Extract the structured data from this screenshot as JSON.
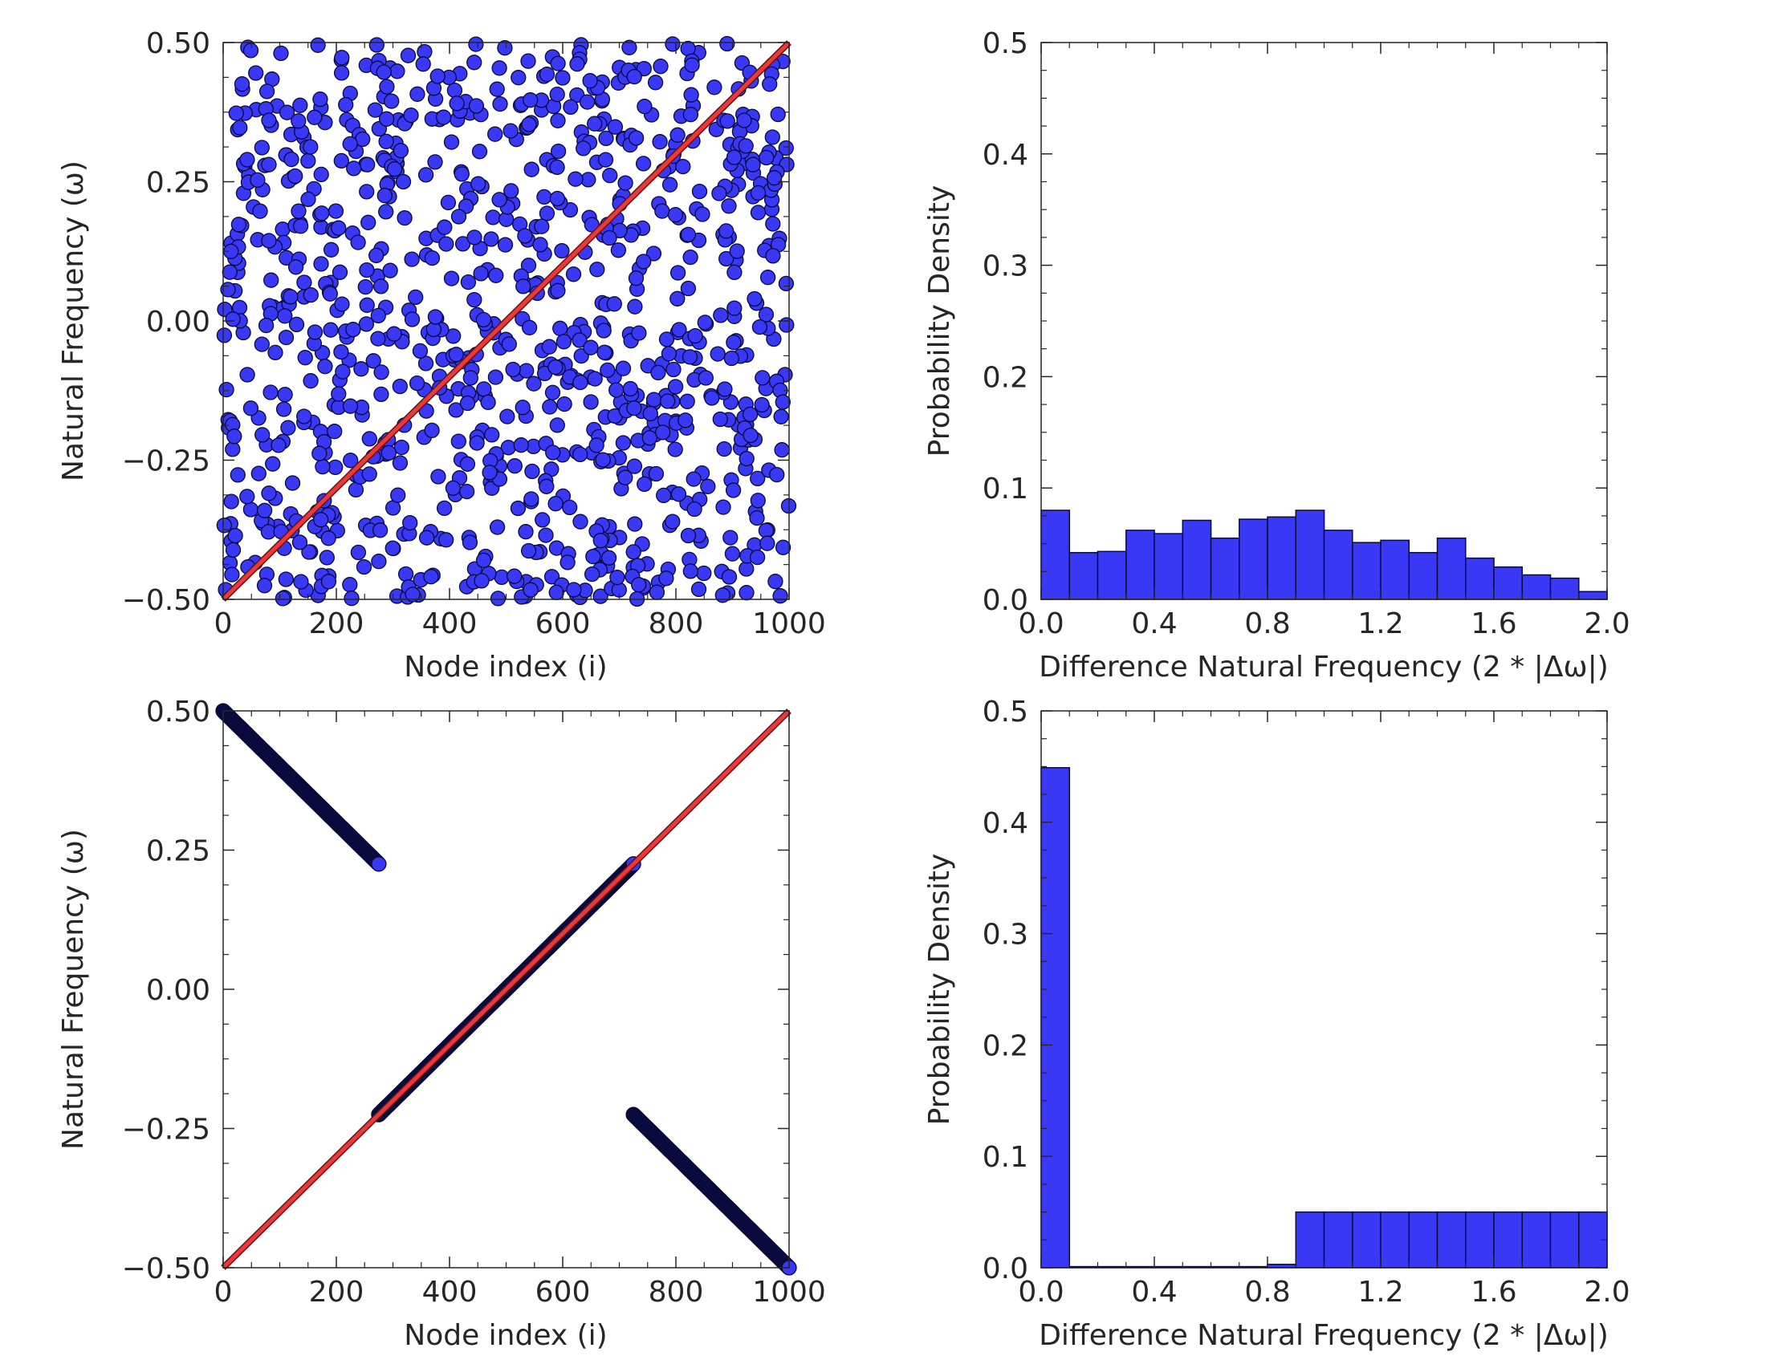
{
  "colors": {
    "marker_fill": "#3838f5",
    "marker_edge": "#0a0a3c",
    "line": "#e83a3a",
    "bar_fill": "#3838f5",
    "bar_edge": "#0a0a3c",
    "text": "#262626",
    "axes": "#262626"
  },
  "chart_data": [
    {
      "type": "scatter",
      "xlabel": "Node index (i)",
      "ylabel": "Natural Frequency (ω)",
      "xlim": [
        0,
        1000
      ],
      "ylim": [
        -0.5,
        0.5
      ],
      "xticks": [
        "0",
        "200",
        "400",
        "600",
        "800",
        "1000"
      ],
      "yticks": [
        "−0.50",
        "−0.25",
        "0.00",
        "0.25",
        "0.50"
      ],
      "series": [
        {
          "kind": "scatter",
          "description_n_points": 1000,
          "x_range": [
            0,
            1000
          ],
          "y_range": [
            -0.5,
            0.5
          ],
          "distribution": "random uniform (shuffled frequencies)"
        },
        {
          "kind": "line",
          "x": [
            0,
            1000
          ],
          "y": [
            -0.5,
            0.5
          ]
        }
      ]
    },
    {
      "type": "bar",
      "xlabel": "Difference Natural Frequency (2 * |Δω|)",
      "ylabel": "Probability Density",
      "xlim": [
        0,
        2
      ],
      "ylim": [
        0,
        0.5
      ],
      "xticks": [
        "0.0",
        "0.4",
        "0.8",
        "1.2",
        "1.6",
        "2.0"
      ],
      "yticks": [
        "0.0",
        "0.1",
        "0.2",
        "0.3",
        "0.4",
        "0.5"
      ],
      "bin_edges": [
        0,
        0.1,
        0.2,
        0.3,
        0.4,
        0.5,
        0.6,
        0.7,
        0.8,
        0.9,
        1.0,
        1.1,
        1.2,
        1.3,
        1.4,
        1.5,
        1.6,
        1.7,
        1.8,
        1.9,
        2.0
      ],
      "values": [
        0.08,
        0.042,
        0.043,
        0.062,
        0.059,
        0.071,
        0.055,
        0.072,
        0.074,
        0.08,
        0.062,
        0.051,
        0.053,
        0.042,
        0.055,
        0.037,
        0.029,
        0.022,
        0.019,
        0.007
      ]
    },
    {
      "type": "scatter",
      "xlabel": "Node index (i)",
      "ylabel": "Natural Frequency (ω)",
      "xlim": [
        0,
        1000
      ],
      "ylim": [
        -0.5,
        0.5
      ],
      "xticks": [
        "0",
        "200",
        "400",
        "600",
        "800",
        "1000"
      ],
      "yticks": [
        "−0.50",
        "−0.25",
        "0.00",
        "0.25",
        "0.50"
      ],
      "series": [
        {
          "kind": "scatter",
          "segments": [
            {
              "x": [
                0,
                275
              ],
              "y": [
                0.5,
                0.225
              ]
            },
            {
              "x": [
                275,
                725
              ],
              "y": [
                -0.225,
                0.225
              ]
            },
            {
              "x": [
                725,
                1000
              ],
              "y": [
                -0.225,
                -0.5
              ]
            }
          ]
        },
        {
          "kind": "line",
          "x": [
            0,
            1000
          ],
          "y": [
            -0.5,
            0.5
          ]
        }
      ]
    },
    {
      "type": "bar",
      "xlabel": "Difference Natural Frequency (2 * |Δω|)",
      "ylabel": "Probability Density",
      "xlim": [
        0,
        2
      ],
      "ylim": [
        0,
        0.5
      ],
      "xticks": [
        "0.0",
        "0.4",
        "0.8",
        "1.2",
        "1.6",
        "2.0"
      ],
      "yticks": [
        "0.0",
        "0.1",
        "0.2",
        "0.3",
        "0.4",
        "0.5"
      ],
      "bin_edges": [
        0,
        0.1,
        0.2,
        0.3,
        0.4,
        0.5,
        0.6,
        0.7,
        0.8,
        0.9,
        1.0,
        1.1,
        1.2,
        1.3,
        1.4,
        1.5,
        1.6,
        1.7,
        1.8,
        1.9,
        2.0
      ],
      "values": [
        0.449,
        0.001,
        0.001,
        0.001,
        0.001,
        0.001,
        0.001,
        0.001,
        0.003,
        0.05,
        0.05,
        0.05,
        0.05,
        0.05,
        0.05,
        0.05,
        0.05,
        0.05,
        0.05,
        0.05
      ]
    }
  ]
}
